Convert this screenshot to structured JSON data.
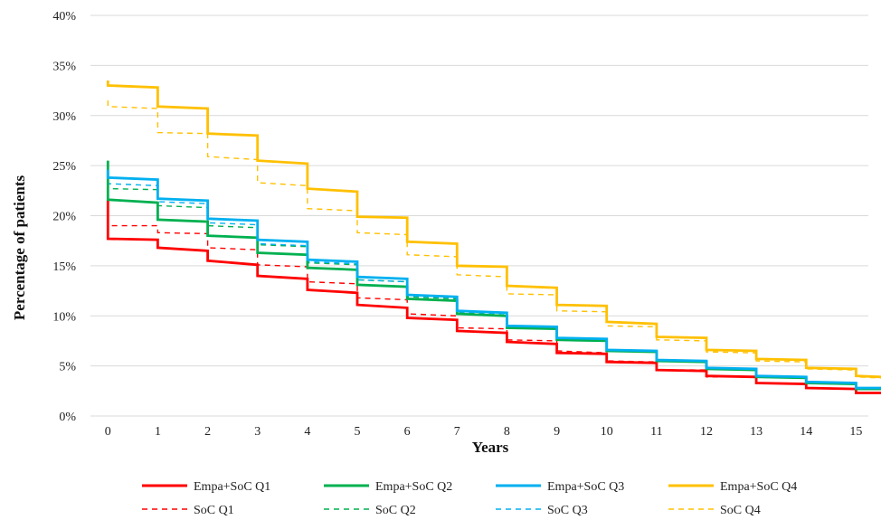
{
  "chart_data": {
    "type": "line",
    "step": true,
    "xlabel": "Years",
    "ylabel": "Percentage of patients",
    "x_ticks": [
      0,
      1,
      2,
      3,
      4,
      5,
      6,
      7,
      8,
      9,
      10,
      11,
      12,
      13,
      14,
      15
    ],
    "x_tick_labels": [
      "0",
      "1",
      "2",
      "3",
      "4",
      "5",
      "6",
      "7",
      "8",
      "9",
      "10",
      "11",
      "12",
      "13",
      "14",
      "15"
    ],
    "xlim": [
      -0.35,
      15.5
    ],
    "ylim": [
      0,
      40
    ],
    "y_ticks": [
      0,
      5,
      10,
      15,
      20,
      25,
      30,
      35,
      40
    ],
    "y_tick_labels": [
      "0%",
      "5%",
      "10%",
      "15%",
      "20%",
      "25%",
      "30%",
      "35%",
      "40%"
    ],
    "grid": "horizontal",
    "legend_position": "bottom",
    "series": [
      {
        "name": "Empa+SoC Q1",
        "color": "#ff0000",
        "dash": "solid",
        "initial": 21.6,
        "steps": [
          [
            17.7,
            17.6
          ],
          [
            16.8,
            16.5
          ],
          [
            15.5,
            15.1
          ],
          [
            14.0,
            13.7
          ],
          [
            12.6,
            12.3
          ],
          [
            11.1,
            10.8
          ],
          [
            9.8,
            9.6
          ],
          [
            8.5,
            8.3
          ],
          [
            7.4,
            7.2
          ],
          [
            6.3,
            6.2
          ],
          [
            5.4,
            5.3
          ],
          [
            4.6,
            4.5
          ],
          [
            4.0,
            3.9
          ],
          [
            3.3,
            3.2
          ],
          [
            2.8,
            2.7
          ],
          [
            2.3,
            2.3
          ]
        ]
      },
      {
        "name": "Empa+SoC Q2",
        "color": "#00b050",
        "dash": "solid",
        "initial": 25.5,
        "steps": [
          [
            21.6,
            21.3
          ],
          [
            19.6,
            19.4
          ],
          [
            18.0,
            17.8
          ],
          [
            16.3,
            16.1
          ],
          [
            14.8,
            14.6
          ],
          [
            13.1,
            12.9
          ],
          [
            11.7,
            11.5
          ],
          [
            10.2,
            10.0
          ],
          [
            8.8,
            8.7
          ],
          [
            7.6,
            7.5
          ],
          [
            6.5,
            6.4
          ],
          [
            5.5,
            5.4
          ],
          [
            4.7,
            4.6
          ],
          [
            3.9,
            3.8
          ],
          [
            3.3,
            3.2
          ],
          [
            2.7,
            2.7
          ]
        ]
      },
      {
        "name": "Empa+SoC Q3",
        "color": "#00b0f0",
        "dash": "solid",
        "initial": 24.6,
        "steps": [
          [
            23.8,
            23.6
          ],
          [
            21.7,
            21.5
          ],
          [
            19.7,
            19.5
          ],
          [
            17.6,
            17.4
          ],
          [
            15.6,
            15.4
          ],
          [
            13.9,
            13.7
          ],
          [
            12.1,
            11.9
          ],
          [
            10.5,
            10.3
          ],
          [
            9.0,
            8.9
          ],
          [
            7.8,
            7.7
          ],
          [
            6.6,
            6.5
          ],
          [
            5.6,
            5.5
          ],
          [
            4.8,
            4.7
          ],
          [
            4.0,
            3.9
          ],
          [
            3.4,
            3.3
          ],
          [
            2.8,
            2.8
          ]
        ]
      },
      {
        "name": "Empa+SoC Q4",
        "color": "#ffc000",
        "dash": "solid",
        "initial": 33.5,
        "steps": [
          [
            33.0,
            32.8
          ],
          [
            30.9,
            30.7
          ],
          [
            28.2,
            28.0
          ],
          [
            25.5,
            25.2
          ],
          [
            22.7,
            22.4
          ],
          [
            19.9,
            19.8
          ],
          [
            17.4,
            17.2
          ],
          [
            15.0,
            14.9
          ],
          [
            13.0,
            12.8
          ],
          [
            11.1,
            11.0
          ],
          [
            9.4,
            9.2
          ],
          [
            7.9,
            7.8
          ],
          [
            6.6,
            6.5
          ],
          [
            5.7,
            5.6
          ],
          [
            4.8,
            4.7
          ],
          [
            4.0,
            3.9
          ]
        ]
      },
      {
        "name": "SoC Q1",
        "color": "#ff0000",
        "dash": "dashed",
        "initial": 19.6,
        "steps": [
          [
            19.0,
            19.0
          ],
          [
            18.3,
            18.2
          ],
          [
            16.8,
            16.6
          ],
          [
            15.1,
            14.9
          ],
          [
            13.4,
            13.2
          ],
          [
            11.8,
            11.6
          ],
          [
            10.2,
            10.0
          ],
          [
            8.8,
            8.7
          ],
          [
            7.6,
            7.5
          ],
          [
            6.5,
            6.3
          ],
          [
            5.5,
            5.4
          ],
          [
            4.6,
            4.6
          ],
          [
            3.9,
            3.9
          ],
          [
            3.3,
            3.2
          ],
          [
            2.8,
            2.7
          ],
          [
            2.3,
            2.3
          ]
        ]
      },
      {
        "name": "SoC Q2",
        "color": "#00b050",
        "dash": "dashed",
        "initial": 23.2,
        "steps": [
          [
            22.7,
            22.6
          ],
          [
            21.0,
            20.8
          ],
          [
            19.0,
            18.8
          ],
          [
            17.1,
            16.9
          ],
          [
            15.3,
            15.1
          ],
          [
            13.6,
            13.4
          ],
          [
            11.9,
            11.7
          ],
          [
            10.3,
            10.2
          ],
          [
            8.9,
            8.8
          ],
          [
            7.7,
            7.6
          ],
          [
            6.5,
            6.4
          ],
          [
            5.5,
            5.4
          ],
          [
            4.7,
            4.6
          ],
          [
            3.9,
            3.8
          ],
          [
            3.3,
            3.2
          ],
          [
            2.7,
            2.7
          ]
        ]
      },
      {
        "name": "SoC Q3",
        "color": "#00b0f0",
        "dash": "dashed",
        "initial": 23.4,
        "steps": [
          [
            23.2,
            23.0
          ],
          [
            21.4,
            21.2
          ],
          [
            19.3,
            19.1
          ],
          [
            17.2,
            17.0
          ],
          [
            15.4,
            15.2
          ],
          [
            13.6,
            13.4
          ],
          [
            12.0,
            11.8
          ],
          [
            10.4,
            10.2
          ],
          [
            9.0,
            8.9
          ],
          [
            7.7,
            7.6
          ],
          [
            6.6,
            6.5
          ],
          [
            5.6,
            5.5
          ],
          [
            4.7,
            4.7
          ],
          [
            4.0,
            3.9
          ],
          [
            3.3,
            3.3
          ],
          [
            2.8,
            2.7
          ]
        ]
      },
      {
        "name": "SoC Q4",
        "color": "#ffc000",
        "dash": "dashed",
        "initial": 31.5,
        "steps": [
          [
            30.9,
            30.7
          ],
          [
            28.3,
            28.2
          ],
          [
            25.9,
            25.6
          ],
          [
            23.3,
            23.0
          ],
          [
            20.7,
            20.5
          ],
          [
            18.3,
            18.1
          ],
          [
            16.1,
            15.9
          ],
          [
            14.1,
            13.9
          ],
          [
            12.2,
            12.1
          ],
          [
            10.5,
            10.4
          ],
          [
            9.0,
            8.9
          ],
          [
            7.6,
            7.5
          ],
          [
            6.4,
            6.3
          ],
          [
            5.5,
            5.4
          ],
          [
            4.7,
            4.6
          ],
          [
            3.9,
            3.8
          ]
        ]
      }
    ]
  }
}
